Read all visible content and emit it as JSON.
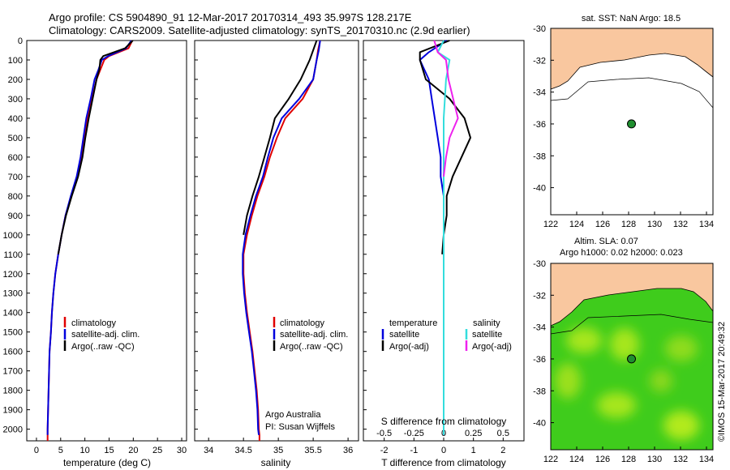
{
  "header": {
    "title_line1": "Argo profile: CS 5904890_91 12-Mar-2017 20170314_493 35.997S 128.217E",
    "title_line2": "Climatology: CARS2009. Satellite-adjusted climatology: synTS_20170310.nc (2.9d earlier)"
  },
  "footer": {
    "credit": "©IMOS 15-Mar-2017 20:49:32",
    "attribution_line1": "Argo Australia",
    "attribution_line2": "PI: Susan Wijffels"
  },
  "maps": {
    "sst_title": "sat. SST: NaN Argo: 18.5",
    "sla_title_line1": "Altim. SLA: 0.07",
    "sla_title_line2": "Argo h1000: 0.02 h2000: 0.023",
    "lon_ticks": [
      122,
      124,
      126,
      128,
      130,
      132,
      134
    ],
    "lat_ticks": [
      -30,
      -32,
      -34,
      -36,
      -38,
      -40
    ],
    "xlim": [
      122,
      134.5
    ],
    "ylim": [
      -41.7,
      -30
    ],
    "float_position": {
      "lon": 128.217,
      "lat": -35.997
    },
    "colors": {
      "land": "#f9c79f",
      "ocean": "#ffffff",
      "sla_base": "#3fcc1c",
      "sla_light": "#a6e61e",
      "marker": "#1f8f2f"
    }
  },
  "chart_data": [
    {
      "type": "line",
      "panel": "temperature",
      "xlabel": "temperature (deg C)",
      "ylabel": "",
      "xlim": [
        -2,
        31
      ],
      "ylim": [
        2060,
        0
      ],
      "xticks": [
        0,
        5,
        10,
        15,
        20,
        25,
        30
      ],
      "yticks": [
        0,
        100,
        200,
        300,
        400,
        500,
        600,
        700,
        800,
        900,
        1000,
        1100,
        1200,
        1300,
        1400,
        1500,
        1600,
        1700,
        1800,
        1900,
        2000
      ],
      "legend": [
        "climatology",
        "satellite-adj. clim.",
        "Argo(..raw -QC)"
      ],
      "legend_position": "lower-middle",
      "series": [
        {
          "name": "climatology",
          "color": "#e00000",
          "x": [
            19.8,
            19.0,
            15.0,
            14.0,
            13.2,
            12.4,
            11.5,
            10.6,
            9.9,
            9.2,
            8.4,
            7.2,
            6.0,
            5.2,
            4.5,
            3.9,
            3.5,
            3.2,
            3.0,
            2.7,
            2.6,
            2.5,
            2.4,
            2.3,
            2.3,
            2.3
          ],
          "y": [
            0,
            40,
            80,
            100,
            150,
            200,
            300,
            400,
            500,
            600,
            700,
            800,
            900,
            1000,
            1100,
            1200,
            1300,
            1400,
            1500,
            1600,
            1700,
            1800,
            1900,
            2000,
            2030,
            2060
          ]
        },
        {
          "name": "satellite-adj. clim.",
          "color": "#0000dd",
          "x": [
            19.6,
            18.5,
            14.8,
            13.5,
            12.8,
            12.0,
            11.2,
            10.3,
            9.7,
            9.1,
            8.3,
            7.1,
            6.0,
            5.2,
            4.5,
            3.9,
            3.5,
            3.2,
            3.0,
            2.7,
            2.6,
            2.5,
            2.4,
            2.3,
            2.3
          ],
          "y": [
            0,
            40,
            80,
            100,
            150,
            200,
            300,
            400,
            500,
            600,
            700,
            800,
            900,
            1000,
            1100,
            1200,
            1300,
            1400,
            1500,
            1600,
            1700,
            1800,
            1900,
            2000,
            2030
          ]
        },
        {
          "name": "Argo(..raw -QC)",
          "color": "#000000",
          "x": [
            19.9,
            18.3,
            13.8,
            13.2,
            13.0,
            12.4,
            11.6,
            10.8,
            10.1,
            9.5,
            8.6,
            7.3,
            6.1,
            5.2,
            4.5
          ],
          "y": [
            0,
            40,
            80,
            100,
            150,
            200,
            300,
            400,
            500,
            600,
            700,
            800,
            900,
            1000,
            1100
          ]
        }
      ]
    },
    {
      "type": "line",
      "panel": "salinity",
      "xlabel": "salinity",
      "ylabel": "",
      "xlim": [
        33.8,
        36.15
      ],
      "ylim": [
        2060,
        0
      ],
      "xticks": [
        34,
        34.5,
        35,
        35.5,
        36
      ],
      "legend": [
        "climatology",
        "satellite-adj. clim.",
        "Argo(..raw -QC)"
      ],
      "legend_position": "lower-middle",
      "series": [
        {
          "name": "climatology",
          "color": "#e00000",
          "x": [
            35.6,
            35.57,
            35.55,
            35.5,
            35.35,
            35.1,
            34.98,
            34.88,
            34.8,
            34.7,
            34.62,
            34.55,
            34.5,
            34.5,
            34.52,
            34.55,
            34.59,
            34.63,
            34.66,
            34.69,
            34.71,
            34.72,
            34.73,
            34.73,
            34.73
          ],
          "y": [
            0,
            50,
            100,
            200,
            300,
            400,
            500,
            600,
            700,
            800,
            900,
            1000,
            1100,
            1200,
            1300,
            1400,
            1500,
            1600,
            1700,
            1800,
            1900,
            2000,
            2030,
            2050,
            2060
          ]
        },
        {
          "name": "satellite-adj. clim.",
          "color": "#0000dd",
          "x": [
            35.6,
            35.58,
            35.55,
            35.5,
            35.3,
            35.05,
            34.93,
            34.85,
            34.78,
            34.68,
            34.6,
            34.53,
            34.49,
            34.49,
            34.51,
            34.54,
            34.58,
            34.62,
            34.65,
            34.68,
            34.7,
            34.71,
            34.72
          ],
          "y": [
            0,
            50,
            100,
            200,
            300,
            400,
            500,
            600,
            700,
            800,
            900,
            1000,
            1100,
            1200,
            1300,
            1400,
            1500,
            1600,
            1700,
            1800,
            1900,
            2000,
            2030
          ]
        },
        {
          "name": "Argo(..raw -QC)",
          "color": "#000000",
          "x": [
            35.55,
            35.5,
            35.45,
            35.32,
            35.15,
            34.95,
            34.88,
            34.8,
            34.72,
            34.63,
            34.55,
            34.5
          ],
          "y": [
            0,
            50,
            100,
            200,
            300,
            400,
            500,
            600,
            700,
            800,
            900,
            1000
          ]
        }
      ]
    },
    {
      "type": "line",
      "panel": "differences",
      "xlabel": "T difference from climatology",
      "xlabel_top": "S difference from climatology",
      "xlim": [
        -2.7,
        2.7
      ],
      "ylim": [
        2060,
        0
      ],
      "xticks": [
        -2,
        -1,
        0,
        1,
        2
      ],
      "xticks_top": [
        -0.5,
        -0.25,
        0,
        0.25,
        0.5
      ],
      "legend_headers": [
        "temperature",
        "salinity"
      ],
      "legend": [
        "satellite",
        "Argo(-adj)",
        "satellite",
        "Argo(-adj)"
      ],
      "legend_position": "lower-middle",
      "series": [
        {
          "name": "satellite",
          "group": "temperature",
          "color": "#0000dd",
          "x": [
            0.1,
            -0.5,
            -0.8,
            -0.5,
            -0.4,
            -0.3,
            -0.2,
            -0.1,
            -0.1,
            0.0,
            0.0,
            0.0,
            0.0,
            0.0,
            0.0,
            0.0,
            0.0,
            0.0,
            0.0,
            0.0,
            0.0
          ],
          "y": [
            0,
            60,
            100,
            200,
            300,
            400,
            500,
            600,
            700,
            800,
            900,
            1000,
            1100,
            1200,
            1300,
            1400,
            1500,
            1600,
            1700,
            1800,
            2030
          ]
        },
        {
          "name": "Argo(-adj)",
          "group": "temperature",
          "color": "#000000",
          "x": [
            0.2,
            -0.8,
            -0.8,
            -0.6,
            0.2,
            0.7,
            0.9,
            0.6,
            0.3,
            0.1,
            0.1,
            0.0,
            -0.05
          ],
          "y": [
            0,
            60,
            100,
            200,
            300,
            400,
            500,
            600,
            700,
            800,
            900,
            1000,
            1100
          ]
        },
        {
          "name": "satellite",
          "group": "salinity",
          "color": "#33dddd",
          "x": [
            0.0,
            -0.05,
            0.05,
            0.02,
            0.01,
            0.0,
            0.0,
            0.0,
            0.0,
            0.0,
            0.0,
            0.0,
            0.0,
            0.0,
            0.0
          ],
          "y": [
            0,
            60,
            100,
            200,
            300,
            400,
            500,
            600,
            700,
            800,
            1000,
            1200,
            1500,
            1800,
            2030
          ]
        },
        {
          "name": "Argo(-adj)",
          "group": "salinity",
          "color": "#ee22ee",
          "x": [
            -0.08,
            -0.05,
            0.02,
            0.04,
            0.08,
            0.12,
            0.05,
            0.02,
            0.0
          ],
          "y": [
            0,
            60,
            100,
            200,
            300,
            400,
            500,
            600,
            700
          ]
        }
      ]
    }
  ]
}
